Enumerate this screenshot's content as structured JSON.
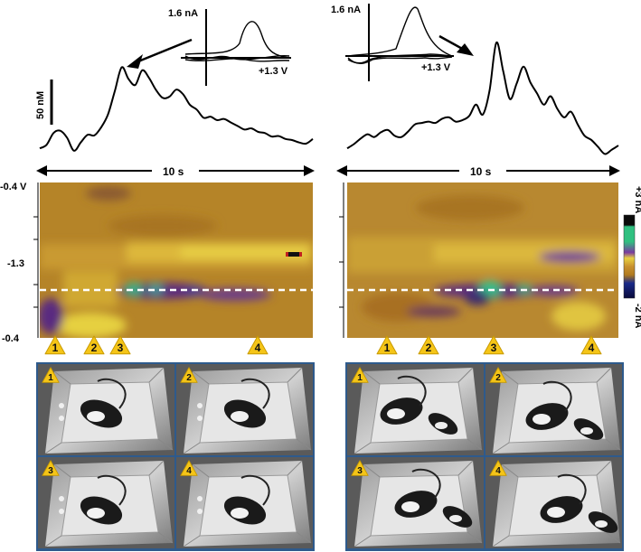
{
  "colors": {
    "trace": "#000000",
    "heat_low": "#b07a1e",
    "heat_mid": "#c8a030",
    "heat_high": "#e8d040",
    "heat_purple": "#5a2a80",
    "heat_green": "#30c080",
    "badge_fill": "#f5c518",
    "photo_border": "#2e5a8c"
  },
  "scale": {
    "concentration_label": "50 nM",
    "colorbar_top": "+3 nA",
    "colorbar_bottom": "-2 nA"
  },
  "panels": [
    {
      "cv_current_label": "1.6 nA",
      "cv_voltage_label": "+1.3 V",
      "time_label": "10 s",
      "y_axis": {
        "top": "-0.4 V",
        "middle": "-1.3",
        "bottom": "-0.4"
      },
      "markers": [
        "1",
        "2",
        "3",
        "4"
      ],
      "photos": [
        "1",
        "2",
        "3",
        "4"
      ]
    },
    {
      "cv_current_label": "1.6 nA",
      "cv_voltage_label": "+1.3 V",
      "time_label": "10 s",
      "markers": [
        "1",
        "2",
        "3",
        "4"
      ],
      "photos": [
        "1",
        "2",
        "3",
        "4"
      ]
    }
  ],
  "chart_data": [
    {
      "type": "line",
      "x": [
        0,
        0.25,
        0.5,
        0.75,
        1.0,
        1.25,
        1.5,
        1.75,
        2.0,
        2.25,
        2.5,
        2.75,
        3.0,
        3.25,
        3.5,
        3.75,
        4.0,
        4.25,
        4.5,
        4.75,
        5.0,
        5.25,
        5.5,
        5.75,
        6.0,
        6.25,
        6.5,
        6.75,
        7.0,
        7.25,
        7.5,
        7.75,
        8.0,
        8.25,
        8.5,
        8.75,
        9.0,
        9.25,
        9.5,
        9.75,
        10.0
      ],
      "y": [
        12,
        18,
        38,
        42,
        30,
        8,
        22,
        35,
        34,
        48,
        70,
        110,
        150,
        130,
        120,
        145,
        132,
        112,
        98,
        100,
        112,
        104,
        86,
        78,
        64,
        66,
        60,
        62,
        56,
        50,
        44,
        46,
        40,
        38,
        32,
        33,
        28,
        26,
        22,
        20,
        28
      ],
      "ylim": [
        -10,
        160
      ],
      "xlim": [
        0,
        10
      ]
    },
    {
      "type": "line",
      "x": [
        0,
        0.25,
        0.5,
        0.75,
        1.0,
        1.25,
        1.5,
        1.75,
        2.0,
        2.25,
        2.5,
        2.75,
        3.0,
        3.25,
        3.5,
        3.75,
        4.0,
        4.25,
        4.5,
        4.75,
        5.0,
        5.25,
        5.5,
        5.75,
        6.0,
        6.25,
        6.5,
        6.75,
        7.0,
        7.25,
        7.5,
        7.75,
        8.0,
        8.25,
        8.5,
        8.75,
        9.0,
        9.25,
        9.5,
        9.75,
        10.0
      ],
      "y": [
        10,
        16,
        24,
        30,
        26,
        33,
        36,
        28,
        26,
        34,
        44,
        46,
        48,
        46,
        52,
        54,
        48,
        50,
        56,
        72,
        58,
        92,
        160,
        120,
        80,
        102,
        126,
        104,
        88,
        72,
        84,
        66,
        54,
        62,
        44,
        28,
        22,
        12,
        2,
        8,
        14
      ],
      "ylim": [
        -10,
        160
      ],
      "xlim": [
        0,
        10
      ]
    }
  ]
}
